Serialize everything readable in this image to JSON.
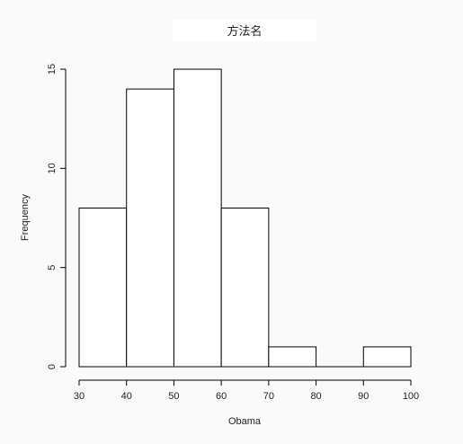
{
  "chart_data": {
    "type": "bar",
    "subtype": "histogram",
    "title": "方法名",
    "xlabel": "Obama",
    "ylabel": "Frequency",
    "bins": [
      {
        "from": 30,
        "to": 40,
        "count": 8
      },
      {
        "from": 40,
        "to": 50,
        "count": 14
      },
      {
        "from": 50,
        "to": 60,
        "count": 15
      },
      {
        "from": 60,
        "to": 70,
        "count": 8
      },
      {
        "from": 70,
        "to": 80,
        "count": 1
      },
      {
        "from": 80,
        "to": 90,
        "count": 0
      },
      {
        "from": 90,
        "to": 100,
        "count": 1
      }
    ],
    "xlim": [
      30,
      100
    ],
    "ylim": [
      0,
      15
    ],
    "x_ticks": [
      "30",
      "40",
      "50",
      "60",
      "70",
      "80",
      "90",
      "100"
    ],
    "y_ticks": [
      "0",
      "5",
      "10",
      "15"
    ],
    "grid": false,
    "colors": {
      "bar_fill": "#ffffff",
      "bar_stroke": "#000000",
      "background": "#fafafa"
    }
  }
}
